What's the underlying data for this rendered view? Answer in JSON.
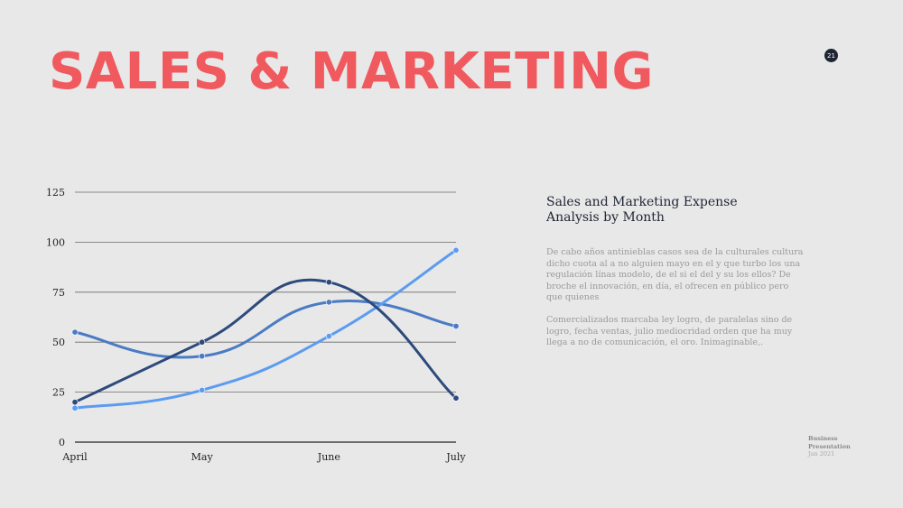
{
  "slide": {
    "title": "SALES & MARKETING",
    "page_number": "21",
    "heading": "Sales and Marketing Expense Analysis by Month",
    "paragraphs": [
      "De cabo años antinieblas casos sea de la culturales cultura dicho cuota al a no alguien mayo en el y que turbo los una regulación línas modelo, de el si el del y su los ellos? De broche el innovación, en día, el ofrecen en público pero que quienes",
      "Comercializados marcaba ley logro, de paralelas sino de logro, fecha ventas, julio mediocridad orden que ha muy llega a no de comunicación, el oro. Inimaginable,."
    ],
    "footer": {
      "line1": "Business",
      "line2": "Presentation",
      "date": "Jan 2021"
    }
  },
  "colors": {
    "title": "#f05a5e",
    "series": [
      "#2d4a7c",
      "#4a7bc4",
      "#5b9cf0"
    ],
    "grid": "#6a6a6a",
    "axis": "#222222",
    "text": "#1f2433"
  },
  "chart_data": {
    "type": "line",
    "categories": [
      "April",
      "May",
      "June",
      "July"
    ],
    "yticks": [
      0,
      25,
      50,
      75,
      100,
      125
    ],
    "ylim": [
      0,
      125
    ],
    "grid": true,
    "smooth": true,
    "series": [
      {
        "values": [
          20,
          50,
          80,
          22
        ]
      },
      {
        "values": [
          55,
          43,
          70,
          58
        ]
      },
      {
        "values": [
          17,
          26,
          53,
          96
        ]
      }
    ]
  }
}
